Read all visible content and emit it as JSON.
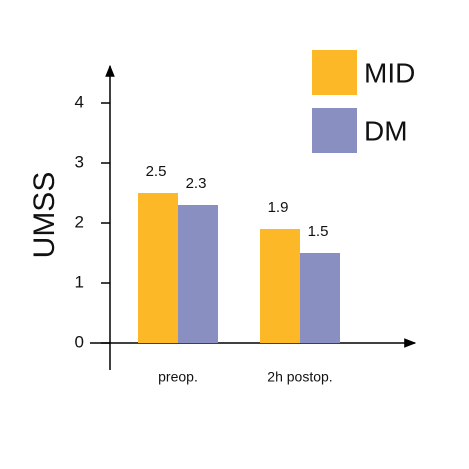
{
  "chart_data": {
    "type": "bar",
    "y_label": "UMSS",
    "categories": [
      "preop.",
      "2h postop."
    ],
    "series": [
      {
        "name": "MID",
        "color": "#fdb827",
        "values": [
          2.5,
          1.9
        ]
      },
      {
        "name": "DM",
        "color": "#8a8fc2",
        "values": [
          2.3,
          1.5
        ]
      }
    ],
    "ylim": [
      0,
      4.6
    ],
    "yticks": [
      0,
      1,
      2,
      3,
      4
    ]
  }
}
